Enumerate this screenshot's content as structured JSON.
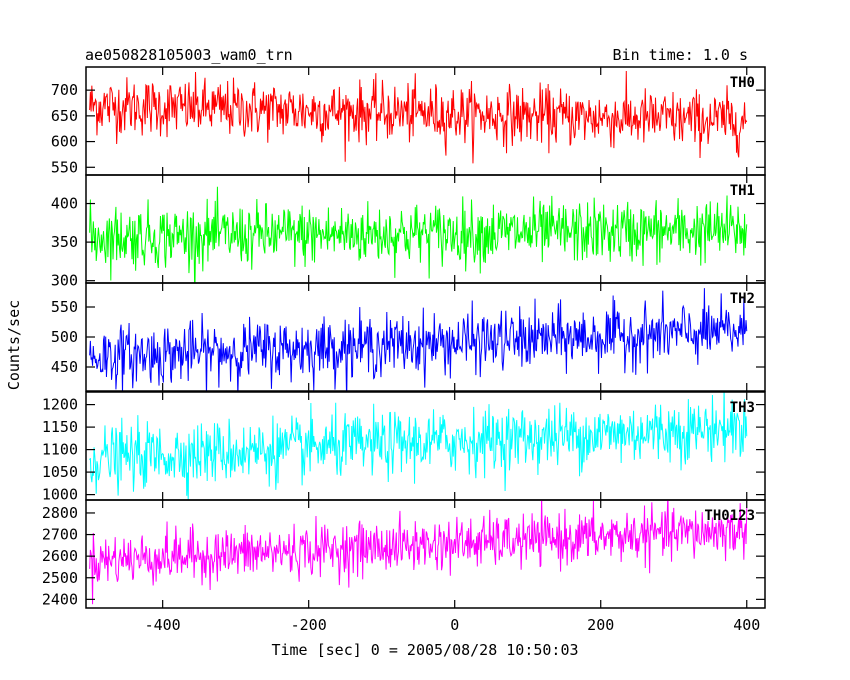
{
  "header": {
    "left_title": "ae050828105003_wam0_trn",
    "right_title": "Bin time: 1.0 s"
  },
  "chart_data": {
    "type": "line",
    "xlabel": "Time [sec] 0 = 2005/08/28 10:50:03",
    "ylabel": "Counts/sec",
    "xlim": [
      -505,
      425
    ],
    "x_range": [
      -500,
      400
    ],
    "x_ticks": [
      -400,
      -200,
      0,
      200,
      400
    ],
    "bin_time_s": 1.0,
    "panels": [
      {
        "name": "TH0",
        "color": "#ff0000",
        "ylim": [
          535,
          745
        ],
        "y_ticks": [
          550,
          600,
          650,
          700
        ],
        "start_mean": 670,
        "end_mean": 640,
        "noise": 28
      },
      {
        "name": "TH1",
        "color": "#00ff00",
        "ylim": [
          297,
          437
        ],
        "y_ticks": [
          300,
          350,
          400
        ],
        "start_mean": 357,
        "end_mean": 365,
        "noise": 20
      },
      {
        "name": "TH2",
        "color": "#0000ff",
        "ylim": [
          410,
          590
        ],
        "y_ticks": [
          450,
          500,
          550
        ],
        "start_mean": 467,
        "end_mean": 510,
        "noise": 25
      },
      {
        "name": "TH3",
        "color": "#00ffff",
        "ylim": [
          988,
          1228
        ],
        "y_ticks": [
          1000,
          1050,
          1100,
          1150,
          1200
        ],
        "start_mean": 1080,
        "end_mean": 1150,
        "noise": 35
      },
      {
        "name": "TH0123",
        "color": "#ff00ff",
        "ylim": [
          2360,
          2860
        ],
        "y_ticks": [
          2400,
          2500,
          2600,
          2700,
          2800
        ],
        "start_mean": 2580,
        "end_mean": 2720,
        "noise": 60
      }
    ]
  }
}
